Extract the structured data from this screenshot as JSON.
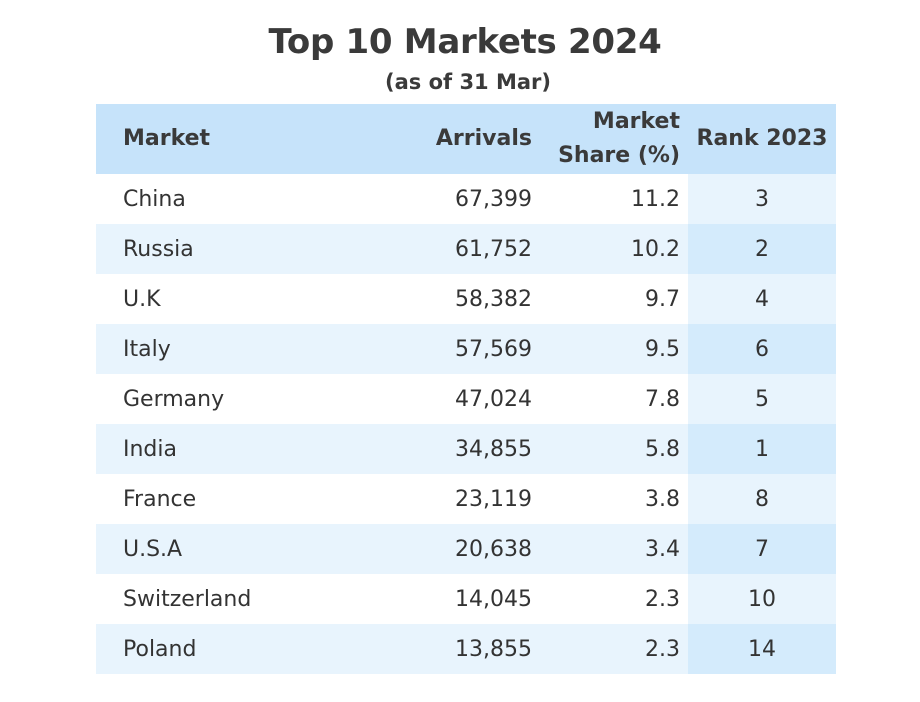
{
  "chart_data": {
    "type": "table",
    "title": "Top 10 Markets 2024",
    "subtitle": "(as of 31 Mar)",
    "columns": {
      "market": "Market",
      "arrivals": "Arrivals",
      "share_line1": "Market",
      "share_line2": "Share (%)",
      "rank": "Rank 2023"
    },
    "rows": [
      {
        "market": "China",
        "arrivals": "67,399",
        "share": "11.2",
        "rank": "3"
      },
      {
        "market": "Russia",
        "arrivals": "61,752",
        "share": "10.2",
        "rank": "2"
      },
      {
        "market": "U.K",
        "arrivals": "58,382",
        "share": "9.7",
        "rank": "4"
      },
      {
        "market": "Italy",
        "arrivals": "57,569",
        "share": "9.5",
        "rank": "6"
      },
      {
        "market": "Germany",
        "arrivals": "47,024",
        "share": "7.8",
        "rank": "5"
      },
      {
        "market": "India",
        "arrivals": "34,855",
        "share": "5.8",
        "rank": "1"
      },
      {
        "market": "France",
        "arrivals": "23,119",
        "share": "3.8",
        "rank": "8"
      },
      {
        "market": "U.S.A",
        "arrivals": "20,638",
        "share": "3.4",
        "rank": "7"
      },
      {
        "market": "Switzerland",
        "arrivals": "14,045",
        "share": "2.3",
        "rank": "10"
      },
      {
        "market": "Poland",
        "arrivals": "13,855",
        "share": "2.3",
        "rank": "14"
      }
    ],
    "colors": {
      "header_bg": "#c6e3fa",
      "stripe_bg": "#e8f4fd",
      "rank_col_bg": "#e8f4fd",
      "rank_col_stripe_bg": "#d4ebfc",
      "text": "#333333"
    }
  }
}
